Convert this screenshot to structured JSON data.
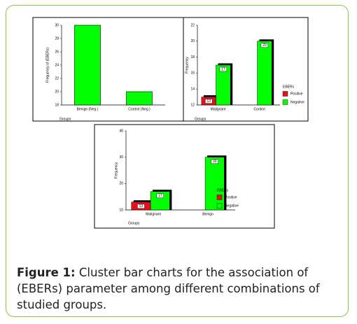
{
  "chart_data": [
    {
      "type": "bar",
      "ylabel": "Frequency of (EBERs)",
      "xlabel": "Groups",
      "categories": [
        "Benign (Neg.)",
        "Control (Neg.)"
      ],
      "values": [
        30,
        20
      ],
      "color": "#00ff00",
      "ylim": [
        18,
        30
      ],
      "yticks": [
        18,
        20,
        22,
        24,
        26,
        28,
        30
      ]
    },
    {
      "type": "grouped_bar",
      "ylabel": "Frequency",
      "xlabel": "Groups",
      "legend_title": "EBERs",
      "categories": [
        "Malignant",
        "Control"
      ],
      "series": [
        {
          "name": "Positive",
          "color": "#e8101c",
          "values": [
            13,
            null
          ]
        },
        {
          "name": "Negative",
          "color": "#00ff00",
          "values": [
            17,
            20
          ]
        }
      ],
      "ylim": [
        12,
        22
      ],
      "yticks": [
        12,
        14,
        16,
        18,
        20,
        22
      ]
    },
    {
      "type": "grouped_bar",
      "ylabel": "Frequency",
      "xlabel": "Groups",
      "legend_title": "EBERs",
      "categories": [
        "Malignant",
        "Benign"
      ],
      "series": [
        {
          "name": "Positive",
          "color": "#e8101c",
          "values": [
            13,
            null
          ]
        },
        {
          "name": "Negative",
          "color": "#00ff00",
          "values": [
            17,
            30
          ]
        }
      ],
      "ylim": [
        10,
        40
      ],
      "yticks": [
        10,
        20,
        30,
        40
      ]
    }
  ],
  "caption": {
    "label": "Figure 1:",
    "text": "Cluster bar charts for the association of (EBERs) parameter among different combinations of studied groups."
  }
}
